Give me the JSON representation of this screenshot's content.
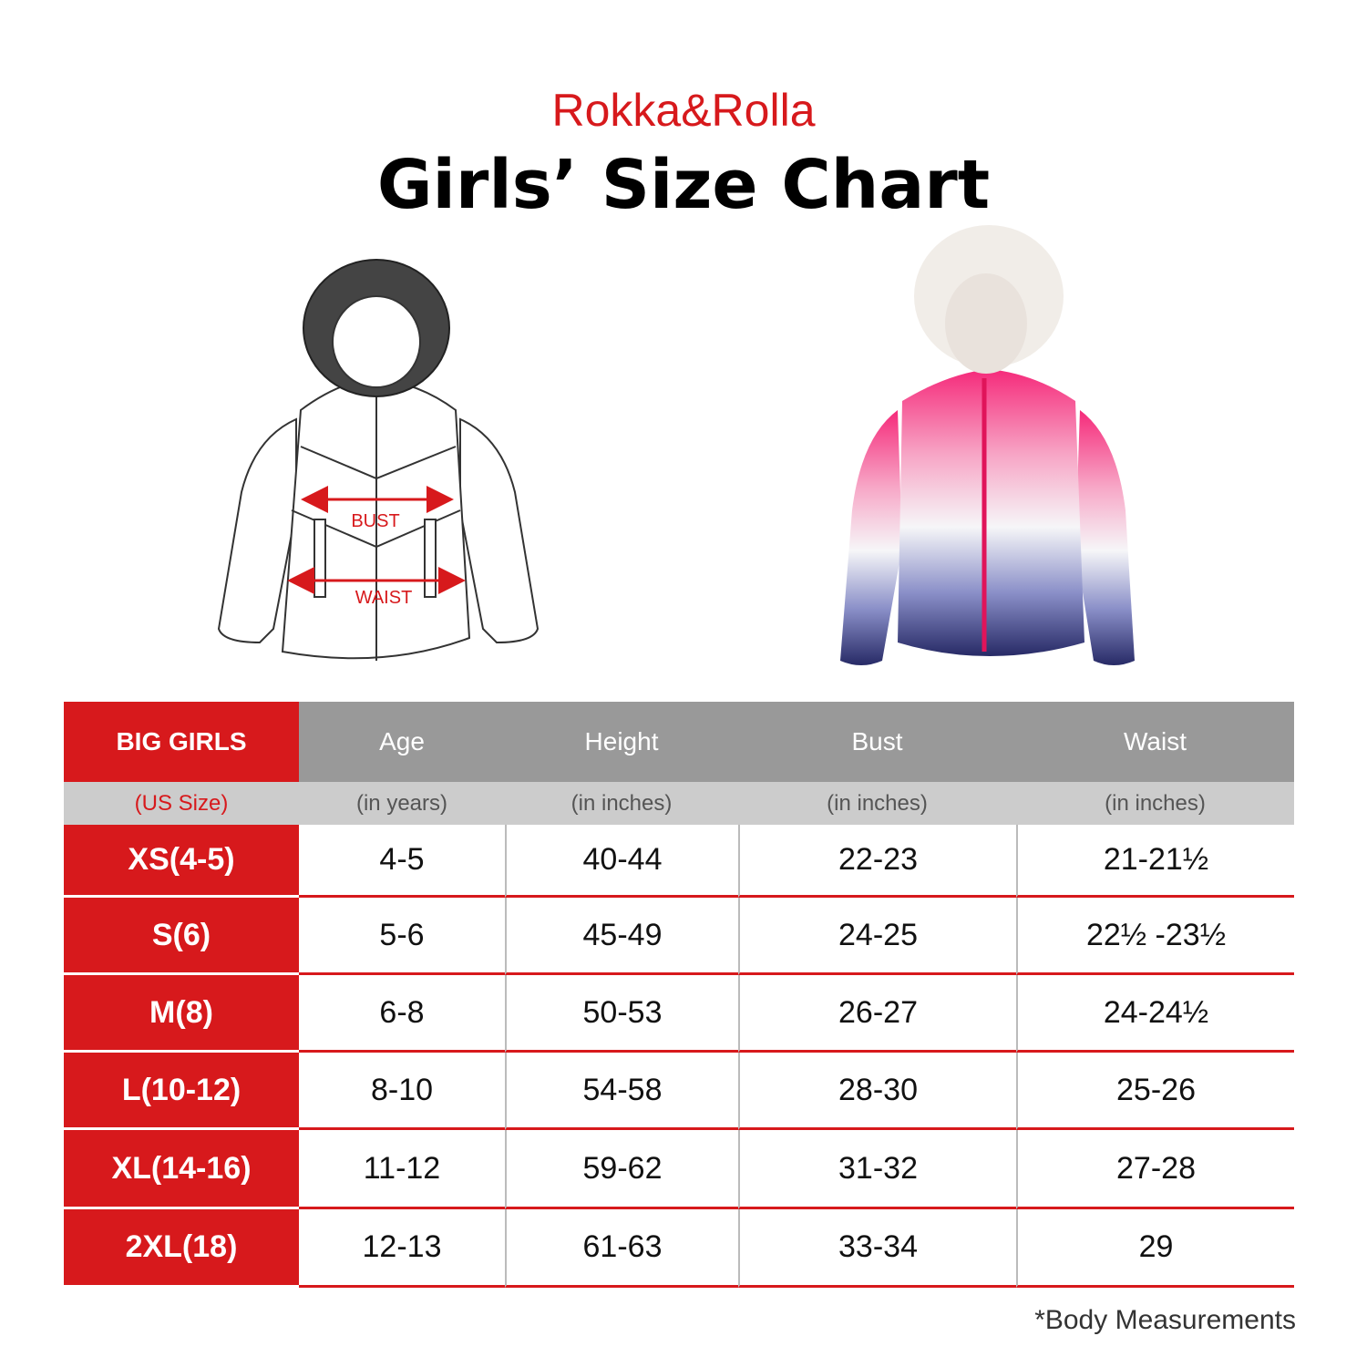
{
  "header": {
    "brand": "Rokka&Rolla",
    "title": "Girls’ Size Chart"
  },
  "diagram": {
    "labels": [
      "BUST",
      "WAIST"
    ]
  },
  "table": {
    "header": [
      "BIG GIRLS",
      "Age",
      "Height",
      "Bust",
      "Waist"
    ],
    "units": [
      "(US Size)",
      "(in years)",
      "(in inches)",
      "(in inches)",
      "(in inches)"
    ],
    "rows": [
      [
        "XS(4-5)",
        "4-5",
        "40-44",
        "22-23",
        "21-21½"
      ],
      [
        "S(6)",
        "5-6",
        "45-49",
        "24-25",
        "22½ -23½"
      ],
      [
        "M(8)",
        "6-8",
        "50-53",
        "26-27",
        "24-24½"
      ],
      [
        "L(10-12)",
        "8-10",
        "54-58",
        "28-30",
        "25-26"
      ],
      [
        "XL(14-16)",
        "11-12",
        "59-62",
        "31-32",
        "27-28"
      ],
      [
        "2XL(18)",
        "12-13",
        "61-63",
        "33-34",
        "29"
      ]
    ]
  },
  "footnote": "*Body Measurements"
}
